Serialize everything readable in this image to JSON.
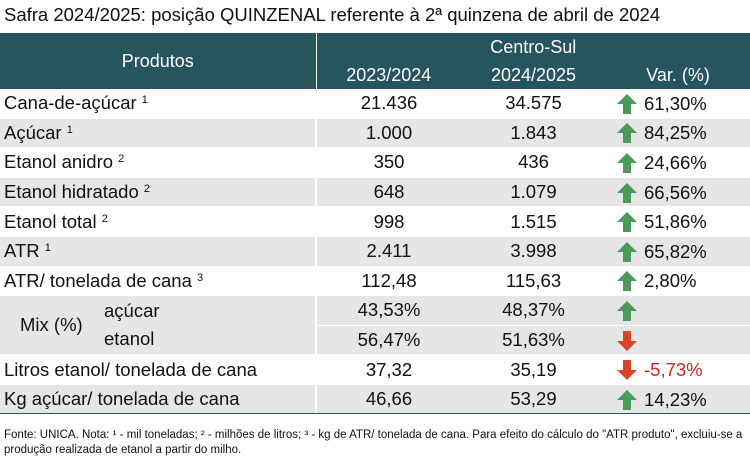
{
  "title": "Safra 2024/2025: posição QUINZENAL referente à 2ª quinzena de abril de 2024",
  "header": {
    "products": "Produtos",
    "region": "Centro-Sul",
    "col1": "2023/2024",
    "col2": "2024/2025",
    "col3": "Var. (%)"
  },
  "rows": [
    {
      "label": "Cana-de-açúcar",
      "sup": "1",
      "v1": "21.436",
      "v2": "34.575",
      "var": "61,30%",
      "dir": "up"
    },
    {
      "label": "Açúcar",
      "sup": "1",
      "v1": "1.000",
      "v2": "1.843",
      "var": "84,25%",
      "dir": "up"
    },
    {
      "label": "Etanol anidro",
      "sup": "2",
      "v1": "350",
      "v2": "436",
      "var": "24,66%",
      "dir": "up"
    },
    {
      "label": "Etanol hidratado",
      "sup": "2",
      "v1": "648",
      "v2": "1.079",
      "var": "66,56%",
      "dir": "up"
    },
    {
      "label": "Etanol total",
      "sup": "2",
      "v1": "998",
      "v2": "1.515",
      "var": "51,86%",
      "dir": "up"
    },
    {
      "label": "ATR",
      "sup": "1",
      "v1": "2.411",
      "v2": "3.998",
      "var": "65,82%",
      "dir": "up"
    },
    {
      "label": "ATR/ tonelada de cana",
      "sup": "3",
      "v1": "112,48",
      "v2": "115,63",
      "var": "2,80%",
      "dir": "up"
    }
  ],
  "mix": {
    "label": "Mix (%)",
    "acucar": {
      "label": "açúcar",
      "v1": "43,53%",
      "v2": "48,37%",
      "dir": "up"
    },
    "etanol": {
      "label": "etanol",
      "v1": "56,47%",
      "v2": "51,63%",
      "dir": "down"
    }
  },
  "rows2": [
    {
      "label": "Litros etanol/ tonelada de cana",
      "v1": "37,32",
      "v2": "35,19",
      "var": "-5,73%",
      "dir": "down"
    },
    {
      "label": "Kg açúcar/ tonelada de cana",
      "v1": "46,66",
      "v2": "53,29",
      "var": "14,23%",
      "dir": "up"
    }
  ],
  "note": "Fonte: UNICA. Nota: ¹ - mil toneladas; ² - milhões de litros; ³ - kg de ATR/ tonelada de cana. Para efeito do cálculo do \"ATR produto\", excluiu-se a produção realizada de etanol a partir do milho.",
  "colors": {
    "header": "#27555f",
    "up": "#4c9a5a",
    "down": "#d9452b",
    "shade": "#e6e6e6"
  }
}
